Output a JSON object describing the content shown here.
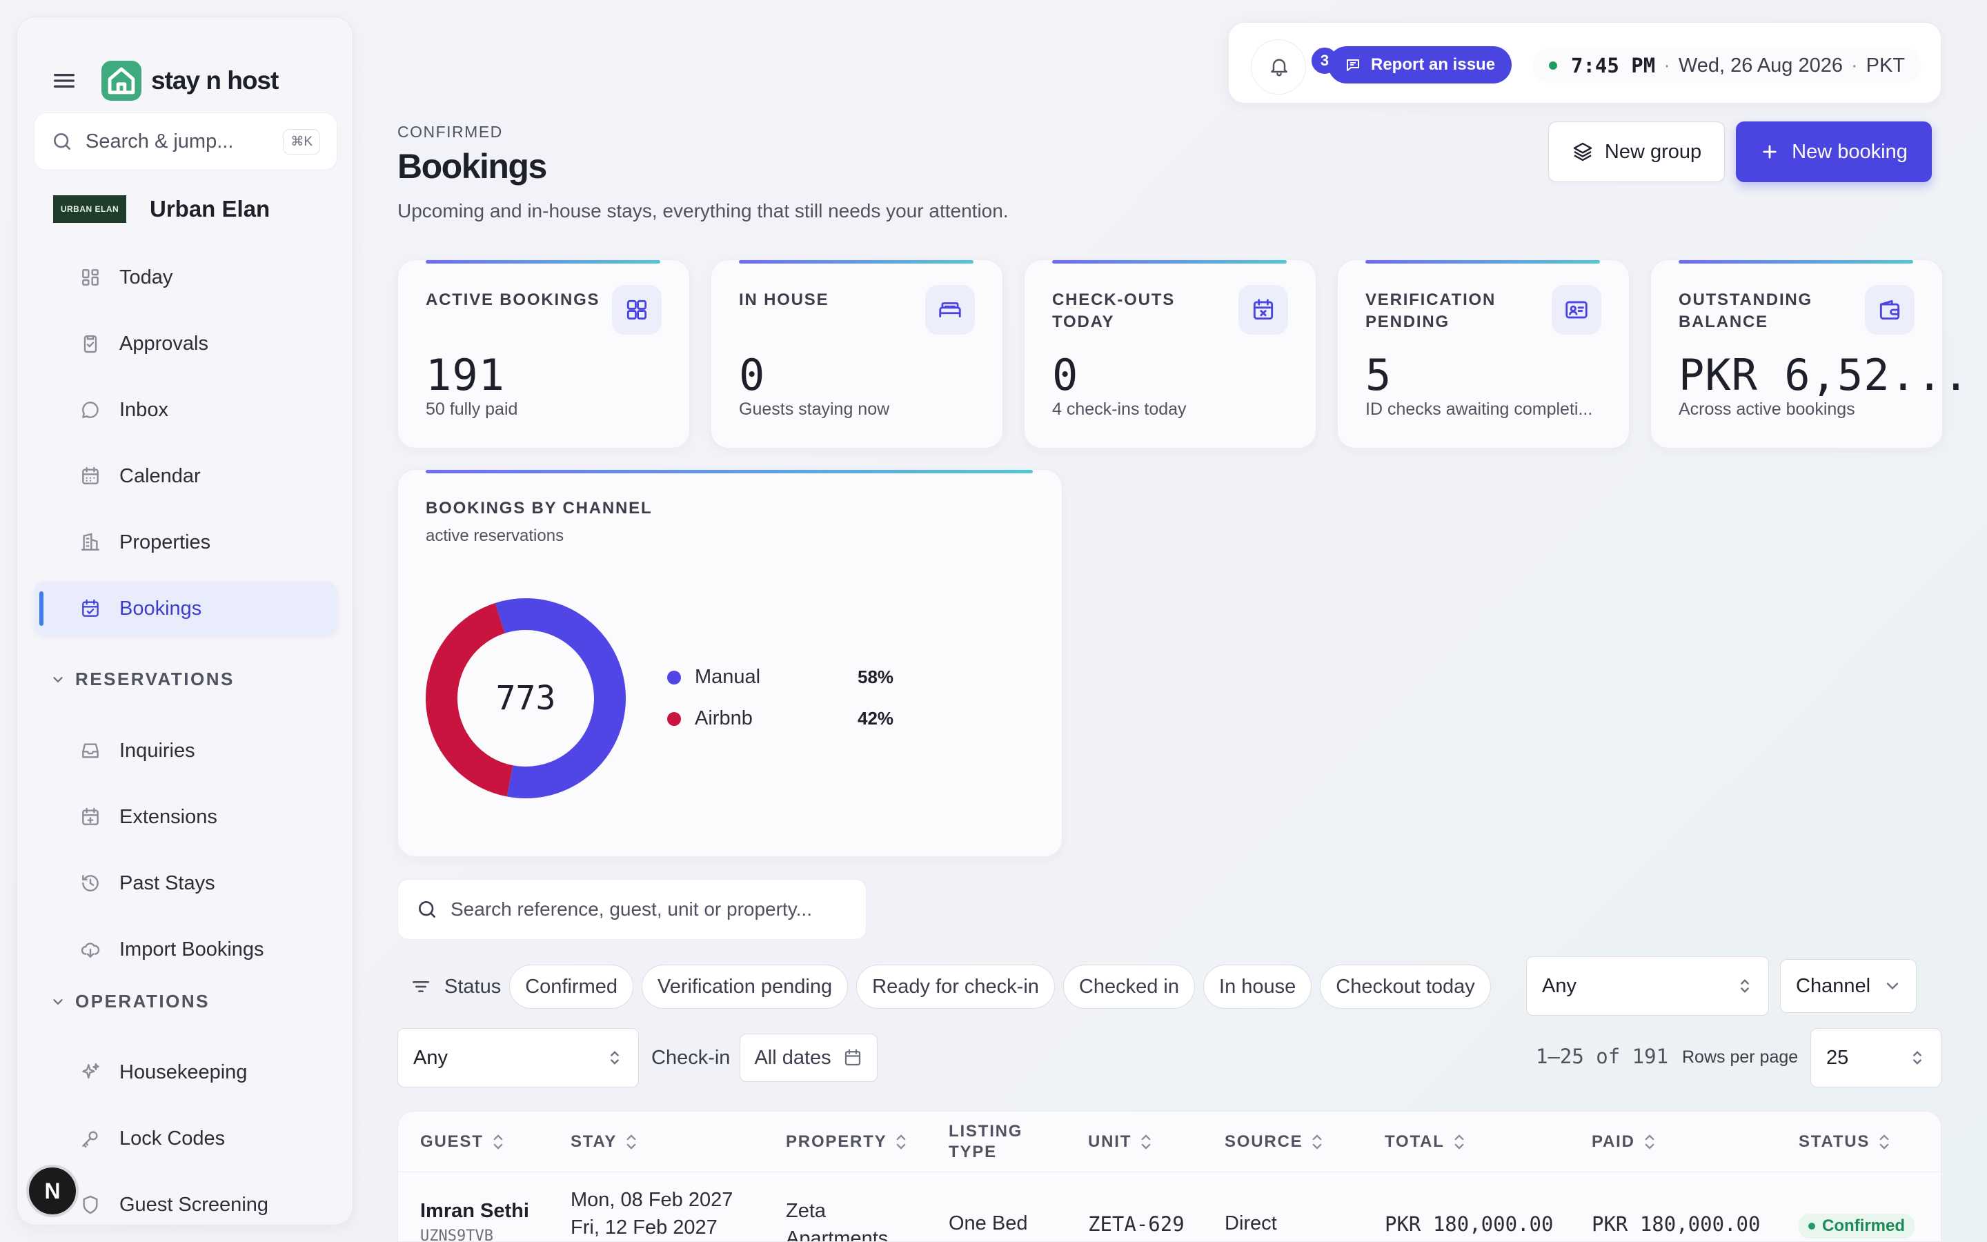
{
  "brand": {
    "name": "stay n host"
  },
  "sidebar": {
    "search_placeholder": "Search & jump...",
    "search_shortcut": "⌘K",
    "org": {
      "logo_text": "URBAN ELAN",
      "name": "Urban Elan"
    },
    "main_items": [
      {
        "label": "Today",
        "icon": "grid-icon"
      },
      {
        "label": "Approvals",
        "icon": "clipboard-check-icon"
      },
      {
        "label": "Inbox",
        "icon": "chat-bubble-icon"
      },
      {
        "label": "Calendar",
        "icon": "calendar-icon"
      },
      {
        "label": "Properties",
        "icon": "building-icon"
      },
      {
        "label": "Bookings",
        "icon": "calendar-check-icon",
        "active": true
      }
    ],
    "reservations_heading": "RESERVATIONS",
    "reservation_items": [
      {
        "label": "Inquiries",
        "icon": "inbox-tray-icon"
      },
      {
        "label": "Extensions",
        "icon": "calendar-plus-icon"
      },
      {
        "label": "Past Stays",
        "icon": "history-icon"
      },
      {
        "label": "Import Bookings",
        "icon": "cloud-download-icon"
      }
    ],
    "operations_heading": "OPERATIONS",
    "operation_items": [
      {
        "label": "Housekeeping",
        "icon": "sparkles-icon"
      },
      {
        "label": "Lock Codes",
        "icon": "key-icon"
      },
      {
        "label": "Guest Screening",
        "icon": "shield-icon"
      }
    ],
    "user_initial": "N"
  },
  "topbar": {
    "notification_count": "3",
    "report_label": "Report an issue",
    "time": "7:45 PM",
    "date": "Wed, 26 Aug 2026",
    "timezone": "PKT"
  },
  "header": {
    "eyebrow": "CONFIRMED",
    "title": "Bookings",
    "subtitle": "Upcoming and in-house stays, everything that still needs your attention.",
    "new_group_label": "New group",
    "new_booking_label": "New booking"
  },
  "stats": [
    {
      "label": "ACTIVE BOOKINGS",
      "value": "191",
      "sub": "50 fully paid",
      "icon": "grid-icon"
    },
    {
      "label": "IN HOUSE",
      "value": "0",
      "sub": "Guests staying now",
      "icon": "bed-icon"
    },
    {
      "label": "CHECK-OUTS TODAY",
      "value": "0",
      "sub": "4 check-ins today",
      "icon": "calendar-x-icon"
    },
    {
      "label": "VERIFICATION PENDING",
      "value": "5",
      "sub": "ID checks awaiting completi...",
      "icon": "id-card-icon"
    },
    {
      "label": "OUTSTANDING BALANCE",
      "value": "PKR 6,52...",
      "sub": "Across active bookings",
      "icon": "wallet-icon"
    }
  ],
  "channel_card": {
    "title": "BOOKINGS BY CHANNEL",
    "subtitle": "active reservations",
    "total": "773"
  },
  "chart_data": {
    "type": "pie",
    "title": "BOOKINGS BY CHANNEL",
    "subtitle": "active reservations",
    "center_label": "773",
    "categories": [
      "Manual",
      "Airbnb"
    ],
    "values": [
      58,
      42
    ],
    "value_labels": [
      "58%",
      "42%"
    ],
    "colors": [
      "#4f46e5",
      "#c8143f"
    ]
  },
  "filters": {
    "search_placeholder": "Search reference, guest, unit or property...",
    "status_label": "Status",
    "status_chips": [
      "Confirmed",
      "Verification pending",
      "Ready for check-in",
      "Checked in",
      "In house",
      "Checkout today"
    ],
    "status_select": "Any",
    "channel_select": "Channel",
    "second_select": "Any",
    "checkin_label": "Check-in",
    "checkin_value": "All dates",
    "pager_text": "1–25 of 191",
    "rows_per_page_label": "Rows per page",
    "rows_per_page": "25"
  },
  "table": {
    "columns": [
      "GUEST",
      "STAY",
      "PROPERTY",
      "LISTING TYPE",
      "UNIT",
      "SOURCE",
      "TOTAL",
      "PAID",
      "STATUS"
    ],
    "rows": [
      {
        "guest": "Imran Sethi",
        "ref": "UZNS9TVB",
        "stay_in": "Mon, 08 Feb 2027",
        "stay_out": "Fri, 12 Feb 2027",
        "property": "Zeta",
        "property2": "Apartments",
        "listing_type": "One Bed",
        "unit": "ZETA-629",
        "source": "Direct",
        "total": "PKR 180,000.00",
        "paid": "PKR 180,000.00",
        "status": "Confirmed"
      }
    ]
  },
  "colors": {
    "accent": "#4a44e0",
    "success": "#1f9d63",
    "airbnb": "#c8143f"
  }
}
